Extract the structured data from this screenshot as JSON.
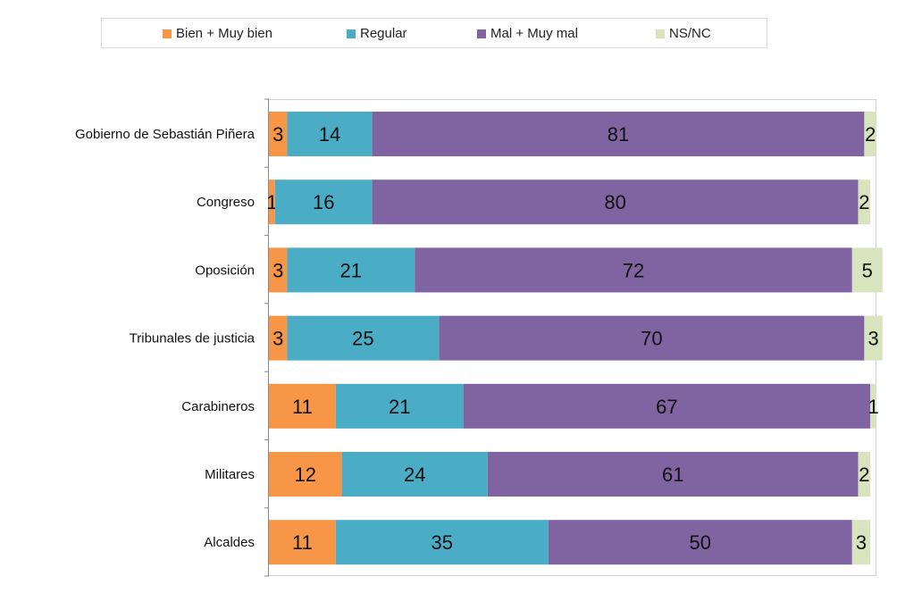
{
  "chart_data": {
    "type": "bar",
    "orientation": "horizontal",
    "stacked": true,
    "percent_stacked": true,
    "title": "",
    "xlabel": "",
    "ylabel": "",
    "xlim": [
      0,
      100
    ],
    "grid": false,
    "legend_position": "top",
    "categories": [
      "Gobierno de Sebastián Piñera",
      "Congreso",
      "Oposición",
      "Tribunales de justicia",
      "Carabineros",
      "Militares",
      "Alcaldes"
    ],
    "series": [
      {
        "name": "Bien + Muy bien",
        "color": "#f79646",
        "values": [
          3,
          1,
          3,
          3,
          11,
          12,
          11
        ]
      },
      {
        "name": "Regular",
        "color": "#4bacc6",
        "values": [
          14,
          16,
          21,
          25,
          21,
          24,
          35
        ]
      },
      {
        "name": "Mal + Muy mal",
        "color": "#8064a2",
        "values": [
          81,
          80,
          72,
          70,
          67,
          61,
          50
        ]
      },
      {
        "name": "NS/NC",
        "color": "#d7e4bd",
        "values": [
          2,
          2,
          5,
          3,
          1,
          2,
          3
        ]
      }
    ]
  }
}
